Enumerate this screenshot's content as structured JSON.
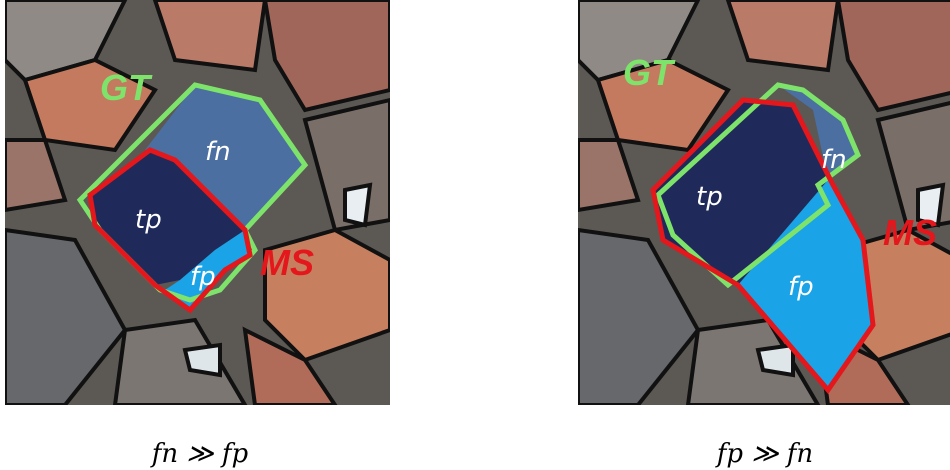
{
  "panels": [
    {
      "gt_label": "GT",
      "ms_label": "MS",
      "fn_label": "fn",
      "tp_label": "tp",
      "fp_label": "fp",
      "caption": "fn ≫ fp"
    },
    {
      "gt_label": "GT",
      "ms_label": "MS",
      "fn_label": "fn",
      "tp_label": "tp",
      "fp_label": "fp",
      "caption": "fp ≫ fn"
    }
  ]
}
